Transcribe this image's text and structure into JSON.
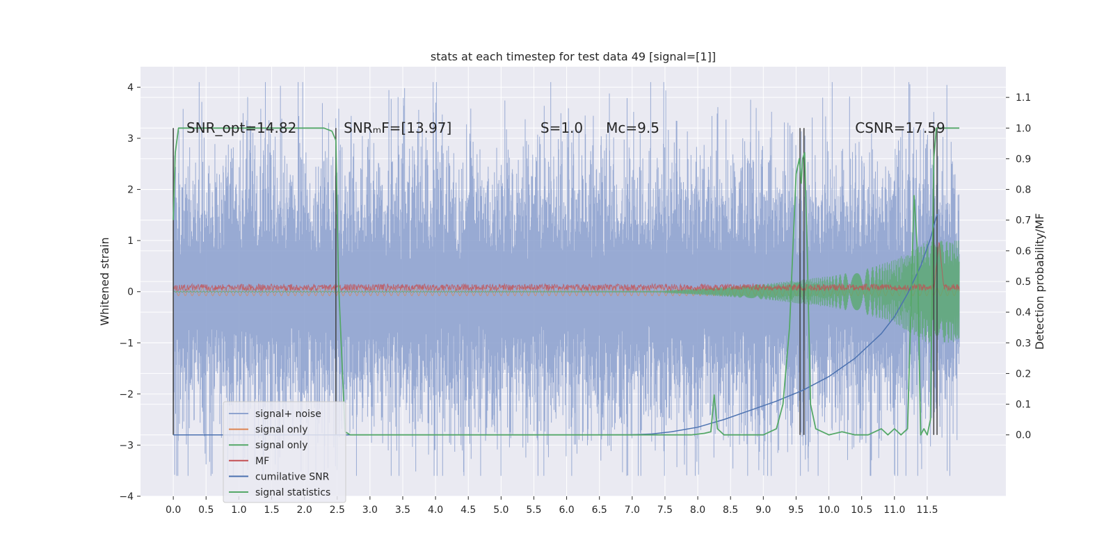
{
  "chart_data": {
    "type": "line",
    "title": "stats at each timestep for test data 49 [signal=[1]]",
    "xlabel": "",
    "ylabel": "Whitened strain",
    "y2label": "Detection probability/MF",
    "xlim": [
      -0.5,
      12.7
    ],
    "ylim": [
      -4.0,
      4.4
    ],
    "y2lim": [
      -0.2,
      1.2
    ],
    "xticks": [
      0.0,
      0.5,
      1.0,
      1.5,
      2.0,
      2.5,
      3.0,
      3.5,
      4.0,
      4.5,
      5.0,
      5.5,
      6.0,
      6.5,
      7.0,
      7.5,
      8.0,
      8.5,
      9.0,
      9.5,
      10.0,
      10.5,
      11.0,
      11.5
    ],
    "xtick_labels": [
      "0.0",
      "0.5",
      "1.0",
      "1.5",
      "2.0",
      "2.5",
      "3.0",
      "3.5",
      "4.0",
      "4.5",
      "5.0",
      "5.5",
      "6.0",
      "6.5",
      "7.0",
      "7.5",
      "8.0",
      "8.5",
      "9.0",
      "9.5",
      "10.0",
      "10.5",
      "11.0",
      "11.5"
    ],
    "yticks": [
      -4,
      -3,
      -2,
      -1,
      0,
      1,
      2,
      3,
      4
    ],
    "ytick_labels": [
      "−4",
      "−3",
      "−2",
      "−1",
      "0",
      "1",
      "2",
      "3",
      "4"
    ],
    "y2ticks": [
      0.0,
      0.1,
      0.2,
      0.3,
      0.4,
      0.5,
      0.6,
      0.7,
      0.8,
      0.9,
      1.0,
      1.1
    ],
    "y2tick_labels": [
      "0.0",
      "0.1",
      "0.2",
      "0.3",
      "0.4",
      "0.5",
      "0.6",
      "0.7",
      "0.8",
      "0.9",
      "1.0",
      "1.1"
    ],
    "grid": true,
    "legend_position": "lower-left",
    "annotations": [
      {
        "text": "SNR_opt=14.82",
        "x": 0.2,
        "y2": 0.985
      },
      {
        "text": "SNRₘF=[13.97]",
        "x": 2.6,
        "y2": 0.985
      },
      {
        "text": "S=1.0",
        "x": 5.6,
        "y2": 0.985
      },
      {
        "text": "Mc=9.5",
        "x": 6.6,
        "y2": 0.985
      },
      {
        "text": "CSNR=17.59",
        "x": 10.4,
        "y2": 0.985
      }
    ],
    "vertical_markers": [
      0.0,
      2.48,
      9.56,
      9.62,
      11.6,
      11.65
    ],
    "series": [
      {
        "name": "signal+ noise",
        "color": "#8fa3cf",
        "axis": "left",
        "description_values": {
          "t_start": 0.0,
          "t_end": 11.99,
          "sigma": 1.0,
          "range": [
            -3.6,
            4.1
          ]
        }
      },
      {
        "name": "signal only",
        "color": "#dd8452",
        "axis": "left",
        "description_values": {
          "t_start": 0.0,
          "t_end": 11.99,
          "max_amplitude": 0.2
        }
      },
      {
        "name": "signal only",
        "color": "#55a868",
        "axis": "left",
        "description_values": {
          "t_start": 0.0,
          "t_end": 11.99,
          "chirp_peak_time": 11.65,
          "envelope": [
            [
              7.5,
              0.02
            ],
            [
              8.0,
              0.06
            ],
            [
              9.0,
              0.15
            ],
            [
              10.0,
              0.3
            ],
            [
              10.5,
              0.42
            ],
            [
              11.0,
              0.62
            ],
            [
              11.5,
              1.0
            ],
            [
              11.99,
              1.0
            ]
          ]
        }
      },
      {
        "name": "MF",
        "color": "#c44e52",
        "axis": "left",
        "description_values": {
          "t_start": 0.0,
          "t_end": 11.99,
          "band": [
            0.02,
            0.15
          ],
          "peak": [
            11.68,
            1.0
          ]
        }
      },
      {
        "name": "cumilative SNR",
        "color": "#4c72b0",
        "axis": "right",
        "x": [
          0.0,
          2.5,
          5.0,
          6.5,
          7.0,
          7.3,
          7.6,
          8.0,
          8.4,
          8.8,
          9.2,
          9.6,
          10.0,
          10.4,
          10.8,
          11.0,
          11.2,
          11.4,
          11.55,
          11.65
        ],
        "values": [
          0.0,
          0.0,
          0.0,
          0.0,
          0.0005,
          0.003,
          0.01,
          0.025,
          0.05,
          0.08,
          0.11,
          0.145,
          0.19,
          0.25,
          0.33,
          0.385,
          0.46,
          0.55,
          0.64,
          0.72
        ]
      },
      {
        "name": "signal statistics",
        "color": "#55a868",
        "axis": "right",
        "x": [
          0.0,
          0.03,
          0.08,
          0.15,
          2.3,
          2.42,
          2.48,
          2.52,
          2.62,
          2.7,
          7.9,
          8.1,
          8.2,
          8.25,
          8.3,
          8.4,
          8.6,
          9.0,
          9.2,
          9.3,
          9.4,
          9.5,
          9.55,
          9.58,
          9.6,
          9.63,
          9.67,
          9.72,
          9.8,
          10.0,
          10.2,
          10.4,
          10.6,
          10.8,
          10.9,
          11.0,
          11.1,
          11.2,
          11.3,
          11.35,
          11.4,
          11.45,
          11.5,
          11.55,
          11.6,
          11.64,
          11.7,
          11.85,
          11.99
        ],
        "values": [
          0.7,
          0.92,
          1.0,
          1.0,
          1.0,
          0.99,
          0.96,
          0.5,
          0.01,
          0.0,
          0.0,
          0.005,
          0.01,
          0.13,
          0.02,
          0.0,
          0.0,
          0.0,
          0.02,
          0.1,
          0.35,
          0.85,
          0.9,
          0.82,
          0.9,
          0.92,
          0.6,
          0.1,
          0.02,
          0.0,
          0.01,
          0.0,
          0.0,
          0.02,
          0.0,
          0.02,
          0.0,
          0.02,
          0.78,
          0.6,
          0.0,
          0.02,
          0.0,
          0.05,
          0.9,
          1.0,
          1.0,
          1.0,
          1.0
        ]
      }
    ]
  }
}
